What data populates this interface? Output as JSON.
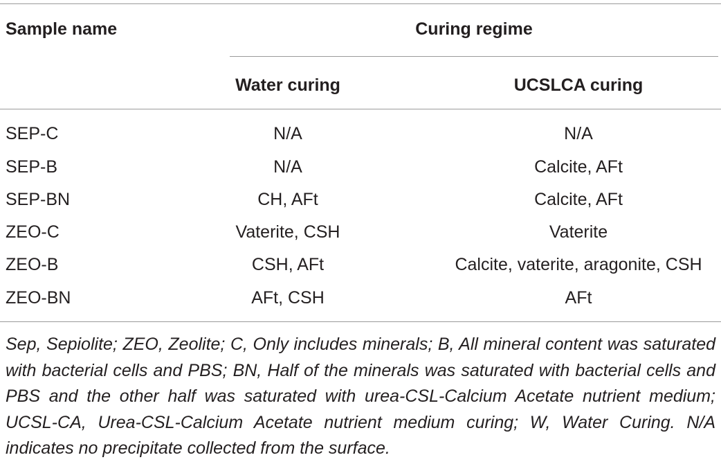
{
  "table": {
    "header": {
      "sample_name": "Sample name",
      "curing_regime": "Curing regime",
      "water_curing": "Water curing",
      "ucslca_curing": "UCSLCA curing"
    },
    "rows": [
      {
        "sample": "SEP-C",
        "water": "N/A",
        "ucslca": "N/A"
      },
      {
        "sample": "SEP-B",
        "water": "N/A",
        "ucslca": "Calcite, AFt"
      },
      {
        "sample": "SEP-BN",
        "water": "CH, AFt",
        "ucslca": "Calcite, AFt"
      },
      {
        "sample": "ZEO-C",
        "water": "Vaterite, CSH",
        "ucslca": "Vaterite"
      },
      {
        "sample": "ZEO-B",
        "water": "CSH, AFt",
        "ucslca": "Calcite, vaterite, aragonite, CSH"
      },
      {
        "sample": "ZEO-BN",
        "water": "AFt, CSH",
        "ucslca": "AFt"
      }
    ]
  },
  "footnote": "Sep, Sepiolite; ZEO, Zeolite; C, Only includes minerals; B, All mineral content was saturated with bacterial cells and PBS; BN, Half of the minerals was saturated with bacterial cells and PBS and the other half was saturated with urea-CSL-Calcium Acetate nutrient medium; UCSL-CA, Urea-CSL-Calcium Acetate nutrient medium curing; W, Water Curing. N/A indicates no precipitate collected from the surface."
}
